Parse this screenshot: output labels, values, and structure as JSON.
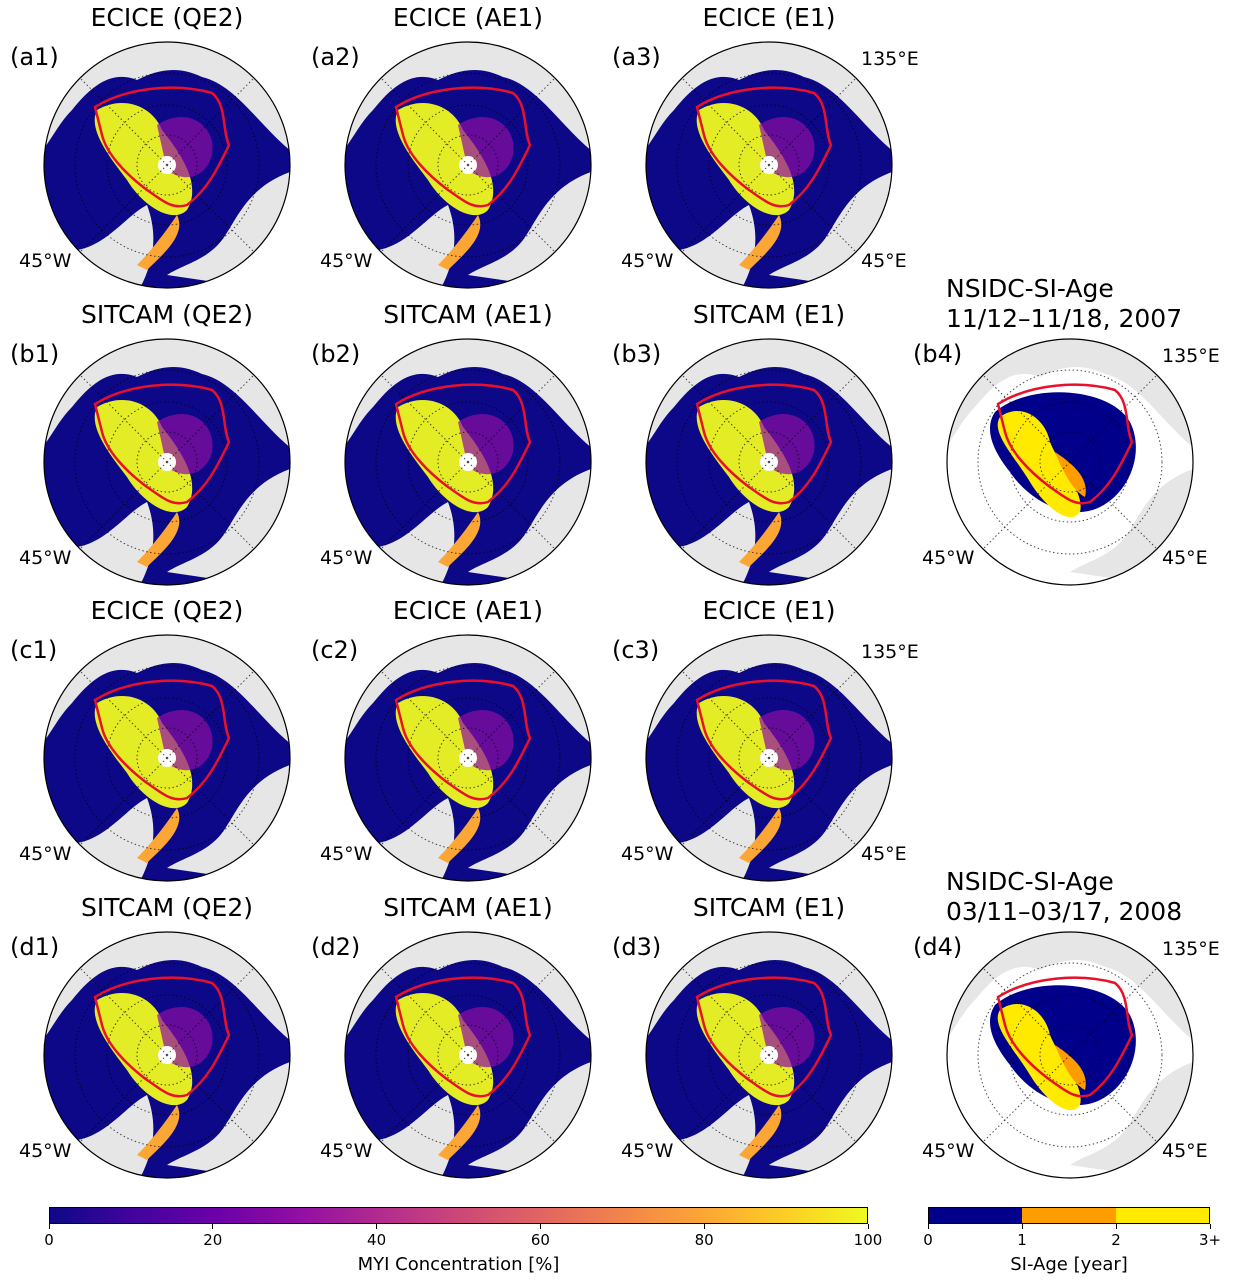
{
  "colors": {
    "plasma": [
      "#0d0887",
      "#41049d",
      "#6a00a8",
      "#8f0da4",
      "#b12a90",
      "#cc4778",
      "#e16462",
      "#f2844b",
      "#fca636",
      "#fcce25",
      "#f0f921"
    ],
    "land": "#e6e6e6",
    "boundary": "#e8102a",
    "age_bins": [
      "#00008b",
      "#ff9c00",
      "#ffea00"
    ]
  },
  "rows": [
    {
      "kind": "myi",
      "panels": [
        {
          "label": "(a1)",
          "title": "ECICE (QE2)",
          "lon_left": "45°W",
          "lon_right": "",
          "lon_top": ""
        },
        {
          "label": "(a2)",
          "title": "ECICE (AE1)",
          "lon_left": "45°W",
          "lon_right": "",
          "lon_top": ""
        },
        {
          "label": "(a3)",
          "title": "ECICE (E1)",
          "lon_left": "45°W",
          "lon_right": "45°E",
          "lon_top": "135°E"
        }
      ]
    },
    {
      "kind": "myi",
      "panels": [
        {
          "label": "(b1)",
          "title": "SITCAM (QE2)",
          "lon_left": "45°W",
          "lon_right": "",
          "lon_top": ""
        },
        {
          "label": "(b2)",
          "title": "SITCAM (AE1)",
          "lon_left": "45°W",
          "lon_right": "",
          "lon_top": ""
        },
        {
          "label": "(b3)",
          "title": "SITCAM (E1)",
          "lon_left": "",
          "lon_right": "",
          "lon_top": ""
        }
      ],
      "age_panel": {
        "label": "(b4)",
        "title_line1": "NSIDC-SI-Age",
        "title_line2": "11/12–11/18, 2007",
        "lon_left": "45°W",
        "lon_right": "45°E",
        "lon_top": "135°E"
      }
    },
    {
      "kind": "myi",
      "panels": [
        {
          "label": "(c1)",
          "title": "ECICE (QE2)",
          "lon_left": "45°W",
          "lon_right": "",
          "lon_top": ""
        },
        {
          "label": "(c2)",
          "title": "ECICE (AE1)",
          "lon_left": "45°W",
          "lon_right": "",
          "lon_top": ""
        },
        {
          "label": "(c3)",
          "title": "ECICE (E1)",
          "lon_left": "45°W",
          "lon_right": "45°E",
          "lon_top": "135°E"
        }
      ]
    },
    {
      "kind": "myi",
      "panels": [
        {
          "label": "(d1)",
          "title": "SITCAM (QE2)",
          "lon_left": "45°W",
          "lon_right": "",
          "lon_top": ""
        },
        {
          "label": "(d2)",
          "title": "SITCAM (AE1)",
          "lon_left": "45°W",
          "lon_right": "",
          "lon_top": ""
        },
        {
          "label": "(d3)",
          "title": "SITCAM (E1)",
          "lon_left": "45°W",
          "lon_right": "",
          "lon_top": ""
        }
      ],
      "age_panel": {
        "label": "(d4)",
        "title_line1": "NSIDC-SI-Age",
        "title_line2": "03/11–03/17, 2008",
        "lon_left": "45°W",
        "lon_right": "45°E",
        "lon_top": "135°E"
      }
    }
  ],
  "colorbar_myi": {
    "label": "MYI Concentration [%]",
    "ticks": [
      "0",
      "20",
      "40",
      "60",
      "80",
      "100"
    ],
    "min": 0,
    "max": 100
  },
  "colorbar_age": {
    "label": "SI-Age [year]",
    "ticks": [
      "0",
      "1",
      "2",
      "3+"
    ],
    "min": 0,
    "max": 3
  }
}
